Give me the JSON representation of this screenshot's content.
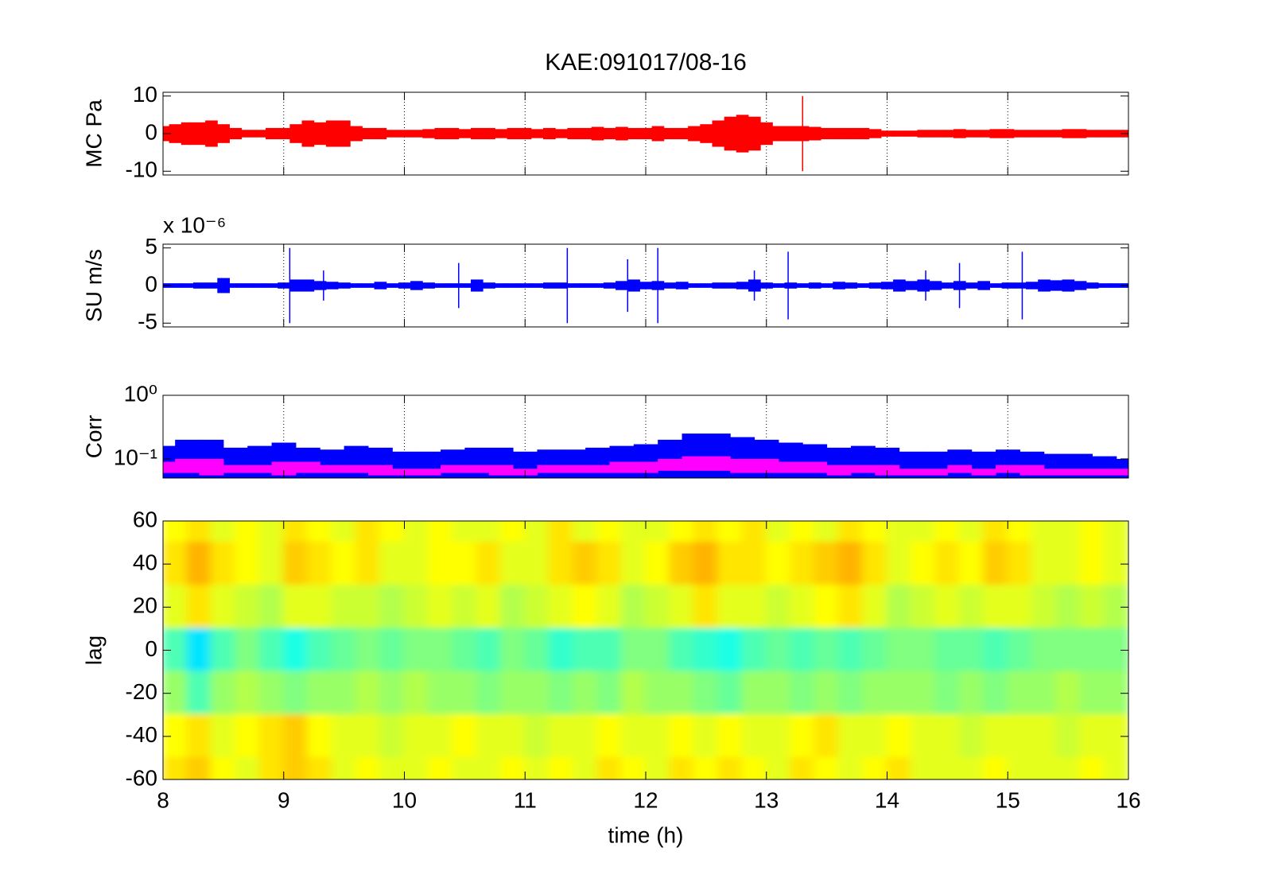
{
  "chart_data": [
    {
      "type": "envelope",
      "title": "KAE:091017/08-16",
      "ylabel": "MC Pa",
      "ylim": [
        -11,
        11
      ],
      "yticks": [
        10,
        0,
        -10
      ],
      "xlim": [
        8,
        16
      ],
      "xticks": [
        8,
        9,
        10,
        11,
        12,
        13,
        14,
        15,
        16
      ],
      "xgrid": true,
      "x": [
        8,
        8.1,
        8.2,
        8.3,
        8.4,
        8.5,
        8.6,
        8.7,
        8.8,
        8.9,
        9,
        9.1,
        9.2,
        9.3,
        9.4,
        9.5,
        9.6,
        9.7,
        9.8,
        9.9,
        10,
        10.1,
        10.2,
        10.3,
        10.4,
        10.5,
        10.6,
        10.7,
        10.8,
        10.9,
        11,
        11.1,
        11.2,
        11.3,
        11.4,
        11.5,
        11.6,
        11.7,
        11.8,
        11.9,
        12,
        12.1,
        12.2,
        12.3,
        12.4,
        12.5,
        12.6,
        12.7,
        12.8,
        12.9,
        13,
        13.1,
        13.2,
        13.3,
        13.4,
        13.5,
        13.6,
        13.7,
        13.8,
        13.9,
        14,
        14.1,
        14.2,
        14.3,
        14.4,
        14.5,
        14.6,
        14.7,
        14.8,
        14.9,
        15,
        15.1,
        15.2,
        15.3,
        15.4,
        15.5,
        15.6,
        15.7,
        15.8,
        15.9,
        16
      ],
      "series": [
        {
          "color": "#ff0000",
          "values": [
            2,
            2.5,
            3,
            3,
            3.5,
            2.5,
            1.5,
            1,
            1,
            1.5,
            1.5,
            2.5,
            3.5,
            3,
            3.5,
            3.5,
            2,
            1.5,
            1.5,
            1,
            1,
            1,
            1.2,
            1.5,
            1.5,
            1.2,
            1.5,
            1.5,
            1.2,
            1.5,
            1.5,
            1.2,
            1.5,
            1.2,
            1.5,
            1.5,
            1.8,
            1.5,
            1.8,
            1.5,
            1.5,
            2,
            1.5,
            1.5,
            2,
            2.5,
            3.5,
            4.5,
            5,
            4.5,
            3,
            2,
            2,
            2,
            1.8,
            1.5,
            1.5,
            1.5,
            1.5,
            1.2,
            0.8,
            0.8,
            0.8,
            1,
            1,
            1,
            1.2,
            1,
            1,
            1.2,
            1.2,
            1,
            1,
            1,
            1,
            1.2,
            1.2,
            1,
            1,
            1,
            1
          ]
        }
      ],
      "spikes": {
        "color": "#ff0000",
        "x": [
          13.3
        ],
        "values": [
          10
        ]
      }
    },
    {
      "type": "envelope",
      "ylabel": "SU m/s",
      "multiplier_label": "x 10⁻⁶",
      "ylim": [
        -5.5,
        5.5
      ],
      "yticks": [
        5,
        0,
        -5
      ],
      "xlim": [
        8,
        16
      ],
      "xticks": [
        8,
        9,
        10,
        11,
        12,
        13,
        14,
        15,
        16
      ],
      "xgrid": true,
      "x": [
        8,
        8.1,
        8.2,
        8.3,
        8.4,
        8.5,
        8.6,
        8.7,
        8.8,
        8.9,
        9,
        9.1,
        9.2,
        9.3,
        9.4,
        9.5,
        9.6,
        9.7,
        9.8,
        9.9,
        10,
        10.1,
        10.2,
        10.3,
        10.4,
        10.5,
        10.6,
        10.7,
        10.8,
        10.9,
        11,
        11.1,
        11.2,
        11.3,
        11.4,
        11.5,
        11.6,
        11.7,
        11.8,
        11.9,
        12,
        12.1,
        12.2,
        12.3,
        12.4,
        12.5,
        12.6,
        12.7,
        12.8,
        12.9,
        13,
        13.1,
        13.2,
        13.3,
        13.4,
        13.5,
        13.6,
        13.7,
        13.8,
        13.9,
        14,
        14.1,
        14.2,
        14.3,
        14.4,
        14.5,
        14.6,
        14.7,
        14.8,
        14.9,
        15,
        15.1,
        15.2,
        15.3,
        15.4,
        15.5,
        15.6,
        15.7,
        15.8,
        15.9,
        16
      ],
      "series": [
        {
          "color": "#0000ff",
          "values": [
            0.3,
            0.3,
            0.3,
            0.4,
            0.4,
            1,
            0.3,
            0.3,
            0.3,
            0.3,
            0.4,
            0.8,
            0.8,
            0.6,
            0.5,
            0.4,
            0.3,
            0.3,
            0.5,
            0.3,
            0.4,
            0.6,
            0.4,
            0.3,
            0.3,
            0.3,
            0.8,
            0.4,
            0.3,
            0.3,
            0.3,
            0.3,
            0.4,
            0.4,
            0.3,
            0.3,
            0.3,
            0.4,
            0.6,
            0.8,
            0.5,
            0.6,
            0.4,
            0.5,
            0.3,
            0.3,
            0.4,
            0.4,
            0.5,
            0.8,
            0.4,
            0.3,
            0.4,
            0.3,
            0.4,
            0.3,
            0.5,
            0.4,
            0.3,
            0.4,
            0.5,
            0.8,
            0.6,
            0.8,
            0.6,
            0.4,
            0.6,
            0.4,
            0.6,
            0.3,
            0.4,
            0.4,
            0.5,
            0.8,
            0.7,
            0.8,
            0.6,
            0.4,
            0.3,
            0.3,
            0.3
          ]
        }
      ],
      "spikes": {
        "color": "#0000ff",
        "x": [
          9.05,
          9.33,
          10.45,
          11.35,
          11.85,
          12.1,
          12.9,
          13.18,
          14.32,
          14.6,
          15.12
        ],
        "values": [
          5,
          2,
          3,
          5,
          3.5,
          5,
          2,
          4.5,
          2,
          3,
          4.5
        ]
      }
    },
    {
      "type": "range",
      "ylabel": "Corr",
      "log_y": true,
      "ylim": [
        0.05,
        1
      ],
      "yticks": [
        {
          "value": 1,
          "label": "10⁰"
        },
        {
          "value": 0.1,
          "label": "10⁻¹"
        }
      ],
      "xlim": [
        8,
        16
      ],
      "xticks": [
        8,
        9,
        10,
        11,
        12,
        13,
        14,
        15,
        16
      ],
      "xgrid": true,
      "x": [
        8,
        8.2,
        8.4,
        8.6,
        8.8,
        9,
        9.2,
        9.4,
        9.6,
        9.8,
        10,
        10.2,
        10.4,
        10.6,
        10.8,
        11,
        11.2,
        11.4,
        11.6,
        11.8,
        12,
        12.2,
        12.4,
        12.6,
        12.8,
        13,
        13.2,
        13.4,
        13.6,
        13.8,
        14,
        14.2,
        14.4,
        14.6,
        14.8,
        15,
        15.2,
        15.4,
        15.6,
        15.8,
        16
      ],
      "series": [
        {
          "color": "#0000ff",
          "values": [
            0.16,
            0.2,
            0.2,
            0.15,
            0.16,
            0.18,
            0.15,
            0.14,
            0.16,
            0.15,
            0.13,
            0.13,
            0.14,
            0.15,
            0.15,
            0.13,
            0.14,
            0.14,
            0.15,
            0.16,
            0.17,
            0.2,
            0.25,
            0.25,
            0.22,
            0.2,
            0.18,
            0.17,
            0.15,
            0.16,
            0.15,
            0.13,
            0.13,
            0.14,
            0.13,
            0.14,
            0.13,
            0.12,
            0.12,
            0.11,
            0.1
          ]
        },
        {
          "color": "#ff00ff",
          "upper": [
            0.09,
            0.1,
            0.1,
            0.08,
            0.08,
            0.09,
            0.09,
            0.08,
            0.08,
            0.08,
            0.07,
            0.07,
            0.08,
            0.08,
            0.08,
            0.07,
            0.08,
            0.08,
            0.08,
            0.09,
            0.09,
            0.1,
            0.11,
            0.11,
            0.1,
            0.1,
            0.09,
            0.09,
            0.08,
            0.08,
            0.08,
            0.07,
            0.07,
            0.08,
            0.07,
            0.08,
            0.08,
            0.07,
            0.07,
            0.07,
            0.07
          ],
          "lower": [
            0.06,
            0.06,
            0.055,
            0.06,
            0.06,
            0.055,
            0.06,
            0.06,
            0.06,
            0.055,
            0.055,
            0.055,
            0.06,
            0.06,
            0.055,
            0.055,
            0.06,
            0.06,
            0.06,
            0.06,
            0.06,
            0.065,
            0.065,
            0.065,
            0.06,
            0.06,
            0.06,
            0.06,
            0.055,
            0.06,
            0.055,
            0.055,
            0.055,
            0.06,
            0.055,
            0.06,
            0.055,
            0.055,
            0.055,
            0.055,
            0.055
          ]
        }
      ]
    },
    {
      "type": "heatmap",
      "ylabel": "lag",
      "xlabel": "time (h)",
      "ylim": [
        -60,
        60
      ],
      "yticks": [
        60,
        40,
        20,
        0,
        -20,
        -40,
        -60
      ],
      "xlim": [
        8,
        16
      ],
      "xticks": [
        8,
        9,
        10,
        11,
        12,
        13,
        14,
        15,
        16
      ],
      "colormap": "jet",
      "clim": [
        -1,
        1
      ],
      "x": [
        8.1,
        8.3,
        8.5,
        8.7,
        8.9,
        9.1,
        9.3,
        9.5,
        9.7,
        9.9,
        10.1,
        10.3,
        10.5,
        10.7,
        10.9,
        11.1,
        11.3,
        11.5,
        11.7,
        11.9,
        12.1,
        12.3,
        12.5,
        12.7,
        12.9,
        13.1,
        13.3,
        13.5,
        13.7,
        13.9,
        14.1,
        14.3,
        14.5,
        14.7,
        14.9,
        15.1,
        15.3,
        15.5,
        15.7,
        15.9
      ],
      "y": [
        60,
        40,
        20,
        0,
        -20,
        -40,
        -60
      ],
      "z": [
        [
          0.25,
          0.3,
          0.2,
          0.25,
          0.2,
          0.3,
          0.25,
          0.2,
          0.3,
          0.25,
          0.2,
          0.25,
          0.2,
          0.2,
          0.25,
          0.2,
          0.3,
          0.2,
          0.25,
          0.2,
          0.2,
          0.25,
          0.3,
          0.25,
          0.3,
          0.2,
          0.25,
          0.2,
          0.3,
          0.25,
          0.2,
          0.2,
          0.25,
          0.2,
          0.3,
          0.25,
          0.2,
          0.2,
          0.25,
          0.2
        ],
        [
          0.3,
          0.4,
          0.3,
          0.25,
          0.2,
          0.35,
          0.3,
          0.25,
          0.3,
          0.2,
          0.2,
          0.25,
          0.25,
          0.3,
          0.2,
          0.2,
          0.3,
          0.35,
          0.3,
          0.2,
          0.25,
          0.35,
          0.4,
          0.3,
          0.3,
          0.25,
          0.3,
          0.35,
          0.4,
          0.3,
          0.2,
          0.25,
          0.3,
          0.25,
          0.35,
          0.3,
          0.2,
          0.2,
          0.25,
          0.2
        ],
        [
          0.2,
          0.3,
          0.2,
          0.15,
          0.1,
          0.2,
          0.2,
          0.15,
          0.15,
          0.1,
          0.15,
          0.2,
          0.15,
          0.2,
          0.1,
          0.15,
          0.2,
          0.25,
          0.2,
          0.1,
          0.15,
          0.2,
          0.3,
          0.2,
          0.2,
          0.15,
          0.2,
          0.25,
          0.3,
          0.2,
          0.1,
          0.15,
          0.2,
          0.15,
          0.2,
          0.2,
          0.15,
          0.1,
          0.15,
          0.1
        ],
        [
          -0.1,
          -0.3,
          -0.1,
          0,
          -0.1,
          -0.2,
          -0.1,
          -0.05,
          0,
          -0.05,
          0,
          0,
          -0.05,
          -0.1,
          0,
          -0.05,
          -0.15,
          -0.1,
          -0.1,
          0,
          0,
          -0.1,
          -0.15,
          -0.2,
          -0.1,
          -0.05,
          -0.1,
          -0.05,
          -0.1,
          -0.05,
          0,
          0,
          -0.05,
          -0.05,
          -0.1,
          -0.05,
          0,
          0,
          0,
          0
        ],
        [
          0.05,
          -0.1,
          0.05,
          0.1,
          0.05,
          0,
          0.05,
          0.05,
          0.1,
          0.05,
          0.1,
          0.05,
          0.05,
          0,
          0.05,
          0.05,
          0,
          0.05,
          0,
          0.1,
          0.05,
          0.05,
          0,
          -0.05,
          0.05,
          0.05,
          0,
          0.05,
          0,
          0.05,
          0.05,
          0.05,
          0,
          0.05,
          0,
          0.05,
          0.05,
          0.1,
          0.05,
          0.05
        ],
        [
          0.25,
          0.3,
          0.2,
          0.25,
          0.3,
          0.35,
          0.25,
          0.2,
          0.2,
          0.15,
          0.2,
          0.2,
          0.25,
          0.2,
          0.2,
          0.15,
          0.2,
          0.2,
          0.25,
          0.2,
          0.2,
          0.25,
          0.2,
          0.25,
          0.2,
          0.2,
          0.25,
          0.3,
          0.2,
          0.2,
          0.25,
          0.2,
          0.2,
          0.15,
          0.2,
          0.2,
          0.2,
          0.15,
          0.2,
          0.2
        ],
        [
          0.3,
          0.35,
          0.25,
          0.2,
          0.3,
          0.35,
          0.3,
          0.2,
          0.25,
          0.2,
          0.2,
          0.25,
          0.2,
          0.2,
          0.25,
          0.2,
          0.25,
          0.2,
          0.3,
          0.25,
          0.2,
          0.3,
          0.25,
          0.3,
          0.25,
          0.2,
          0.3,
          0.25,
          0.2,
          0.25,
          0.3,
          0.2,
          0.2,
          0.2,
          0.25,
          0.2,
          0.2,
          0.2,
          0.25,
          0.2
        ]
      ]
    }
  ]
}
